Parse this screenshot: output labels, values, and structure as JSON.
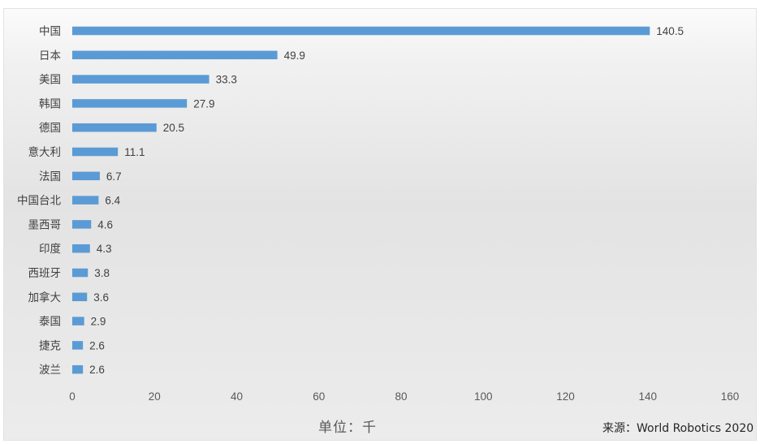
{
  "chart_data": {
    "type": "bar",
    "orientation": "horizontal",
    "categories": [
      "中国",
      "日本",
      "美国",
      "韩国",
      "德国",
      "意大利",
      "法国",
      "中国台北",
      "墨西哥",
      "印度",
      "西班牙",
      "加拿大",
      "泰国",
      "捷克",
      "波兰"
    ],
    "values": [
      140.5,
      49.9,
      33.3,
      27.9,
      20.5,
      11.1,
      6.7,
      6.4,
      4.6,
      4.3,
      3.8,
      3.6,
      2.9,
      2.6,
      2.6
    ],
    "value_labels": [
      "140.5",
      "49.9",
      "33.3",
      "27.9",
      "20.5",
      "11.1",
      "6.7",
      "6.4",
      "4.6",
      "4.3",
      "3.8",
      "3.6",
      "2.9",
      "2.6",
      "2.6"
    ],
    "xlim": [
      0,
      160
    ],
    "xticks": [
      0,
      20,
      40,
      60,
      80,
      100,
      120,
      140,
      160
    ],
    "xtick_labels": [
      "0",
      "20",
      "40",
      "60",
      "80",
      "100",
      "120",
      "140",
      "160"
    ],
    "unit_label": "单位：千",
    "source": "来源：World Robotics 2020",
    "grid": false,
    "legend": "none",
    "colors": {
      "bar": "#5b9bd5"
    }
  }
}
